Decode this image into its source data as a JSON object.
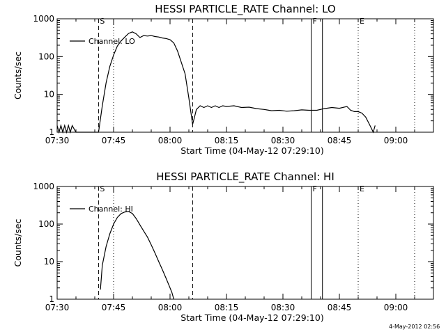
{
  "footer": {
    "timestamp": "4-May-2012 02:56"
  },
  "chart_data": [
    {
      "type": "line",
      "title": "HESSI PARTICLE_RATE Channel: LO",
      "xlabel": "Start Time (04-May-12 07:29:10)",
      "ylabel": "Counts/sec",
      "y_scale": "log",
      "ylim": [
        1,
        1000
      ],
      "xlim": [
        "07:30",
        "09:10"
      ],
      "x_ticks": [
        "07:30",
        "07:45",
        "08:00",
        "08:15",
        "08:30",
        "08:45",
        "09:00"
      ],
      "y_ticks": [
        "1",
        "10",
        "100",
        "1000"
      ],
      "legend": {
        "placement": "top-left",
        "entries": [
          "Channel: LO"
        ]
      },
      "markers": [
        {
          "label": "S",
          "time": "07:41",
          "style": "dashed"
        },
        {
          "label": "",
          "time": "07:45",
          "style": "dotted"
        },
        {
          "label": "",
          "time": "08:06",
          "style": "dashed"
        },
        {
          "label": "F",
          "time": "08:37.5",
          "style": "solid"
        },
        {
          "label": "",
          "time": "08:40.5",
          "style": "solid"
        },
        {
          "label": "E",
          "time": "08:50",
          "style": "dotted"
        },
        {
          "label": "",
          "time": "09:05",
          "style": "dotted"
        }
      ],
      "series": [
        {
          "x": [
            "07:30",
            "07:30.5",
            "07:31",
            "07:31.5",
            "07:32",
            "07:32.5",
            "07:33",
            "07:33.5",
            "07:34",
            "07:35",
            "07:41",
            "07:42",
            "07:43",
            "07:44",
            "07:45",
            "07:46",
            "07:47",
            "07:48",
            "07:49",
            "07:50",
            "07:51",
            "07:52",
            "07:53",
            "07:54",
            "07:55",
            "07:56",
            "07:57",
            "07:58",
            "07:59",
            "08:00",
            "08:01",
            "08:02",
            "08:03",
            "08:04",
            "08:05",
            "08:06",
            "08:06.5",
            "08:07",
            "08:08",
            "08:09",
            "08:10",
            "08:11",
            "08:12",
            "08:13",
            "08:14",
            "08:15",
            "08:17",
            "08:19",
            "08:21",
            "08:23",
            "08:25",
            "08:27",
            "08:29",
            "08:31",
            "08:33",
            "08:35",
            "08:37",
            "08:39",
            "08:41",
            "08:43",
            "08:45",
            "08:47",
            "08:48",
            "08:49",
            "08:50",
            "08:51",
            "08:52",
            "08:53",
            "08:54",
            "08:54.5"
          ],
          "y": [
            1.5,
            1,
            1.5,
            1,
            1.5,
            1,
            1.5,
            1,
            1.5,
            1,
            1,
            5,
            20,
            55,
            110,
            190,
            260,
            330,
            410,
            450,
            400,
            320,
            360,
            350,
            360,
            340,
            330,
            310,
            300,
            280,
            230,
            140,
            70,
            35,
            8,
            1.6,
            2.5,
            4,
            5,
            4.5,
            5,
            4.5,
            5,
            4.5,
            5,
            4.8,
            5,
            4.5,
            4.6,
            4.2,
            4,
            3.7,
            3.8,
            3.6,
            3.7,
            3.9,
            3.8,
            3.8,
            4.2,
            4.5,
            4.3,
            4.8,
            3.8,
            3.5,
            3.5,
            3.2,
            2.5,
            1.6,
            1,
            1.5
          ]
        }
      ]
    },
    {
      "type": "line",
      "title": "HESSI PARTICLE_RATE Channel: HI",
      "xlabel": "Start Time (04-May-12 07:29:10)",
      "ylabel": "Counts/sec",
      "y_scale": "log",
      "ylim": [
        1,
        1000
      ],
      "xlim": [
        "07:30",
        "09:10"
      ],
      "x_ticks": [
        "07:30",
        "07:45",
        "08:00",
        "08:15",
        "08:30",
        "08:45",
        "09:00"
      ],
      "y_ticks": [
        "1",
        "10",
        "100",
        "1000"
      ],
      "legend": {
        "placement": "top-left",
        "entries": [
          "Channel: HI"
        ]
      },
      "markers": [
        {
          "label": "S",
          "time": "07:41",
          "style": "dashed"
        },
        {
          "label": "",
          "time": "07:45",
          "style": "dotted"
        },
        {
          "label": "",
          "time": "08:06",
          "style": "dashed"
        },
        {
          "label": "F",
          "time": "08:37.5",
          "style": "solid"
        },
        {
          "label": "",
          "time": "08:40.5",
          "style": "solid"
        },
        {
          "label": "E",
          "time": "08:50",
          "style": "dotted"
        },
        {
          "label": "",
          "time": "09:05",
          "style": "dotted"
        }
      ],
      "series": [
        {
          "x": [
            "07:41.5",
            "07:42",
            "07:43",
            "07:44",
            "07:45",
            "07:46",
            "07:47",
            "07:48",
            "07:49",
            "07:50",
            "07:51",
            "07:52",
            "07:53",
            "07:54",
            "07:55",
            "07:56",
            "07:57",
            "07:58",
            "07:59",
            "08:00",
            "08:00.5",
            "08:01"
          ],
          "y": [
            1.8,
            8,
            25,
            55,
            100,
            150,
            190,
            210,
            215,
            190,
            140,
            95,
            65,
            45,
            28,
            17,
            10,
            6,
            3.5,
            2,
            1.5,
            1
          ]
        }
      ]
    }
  ]
}
